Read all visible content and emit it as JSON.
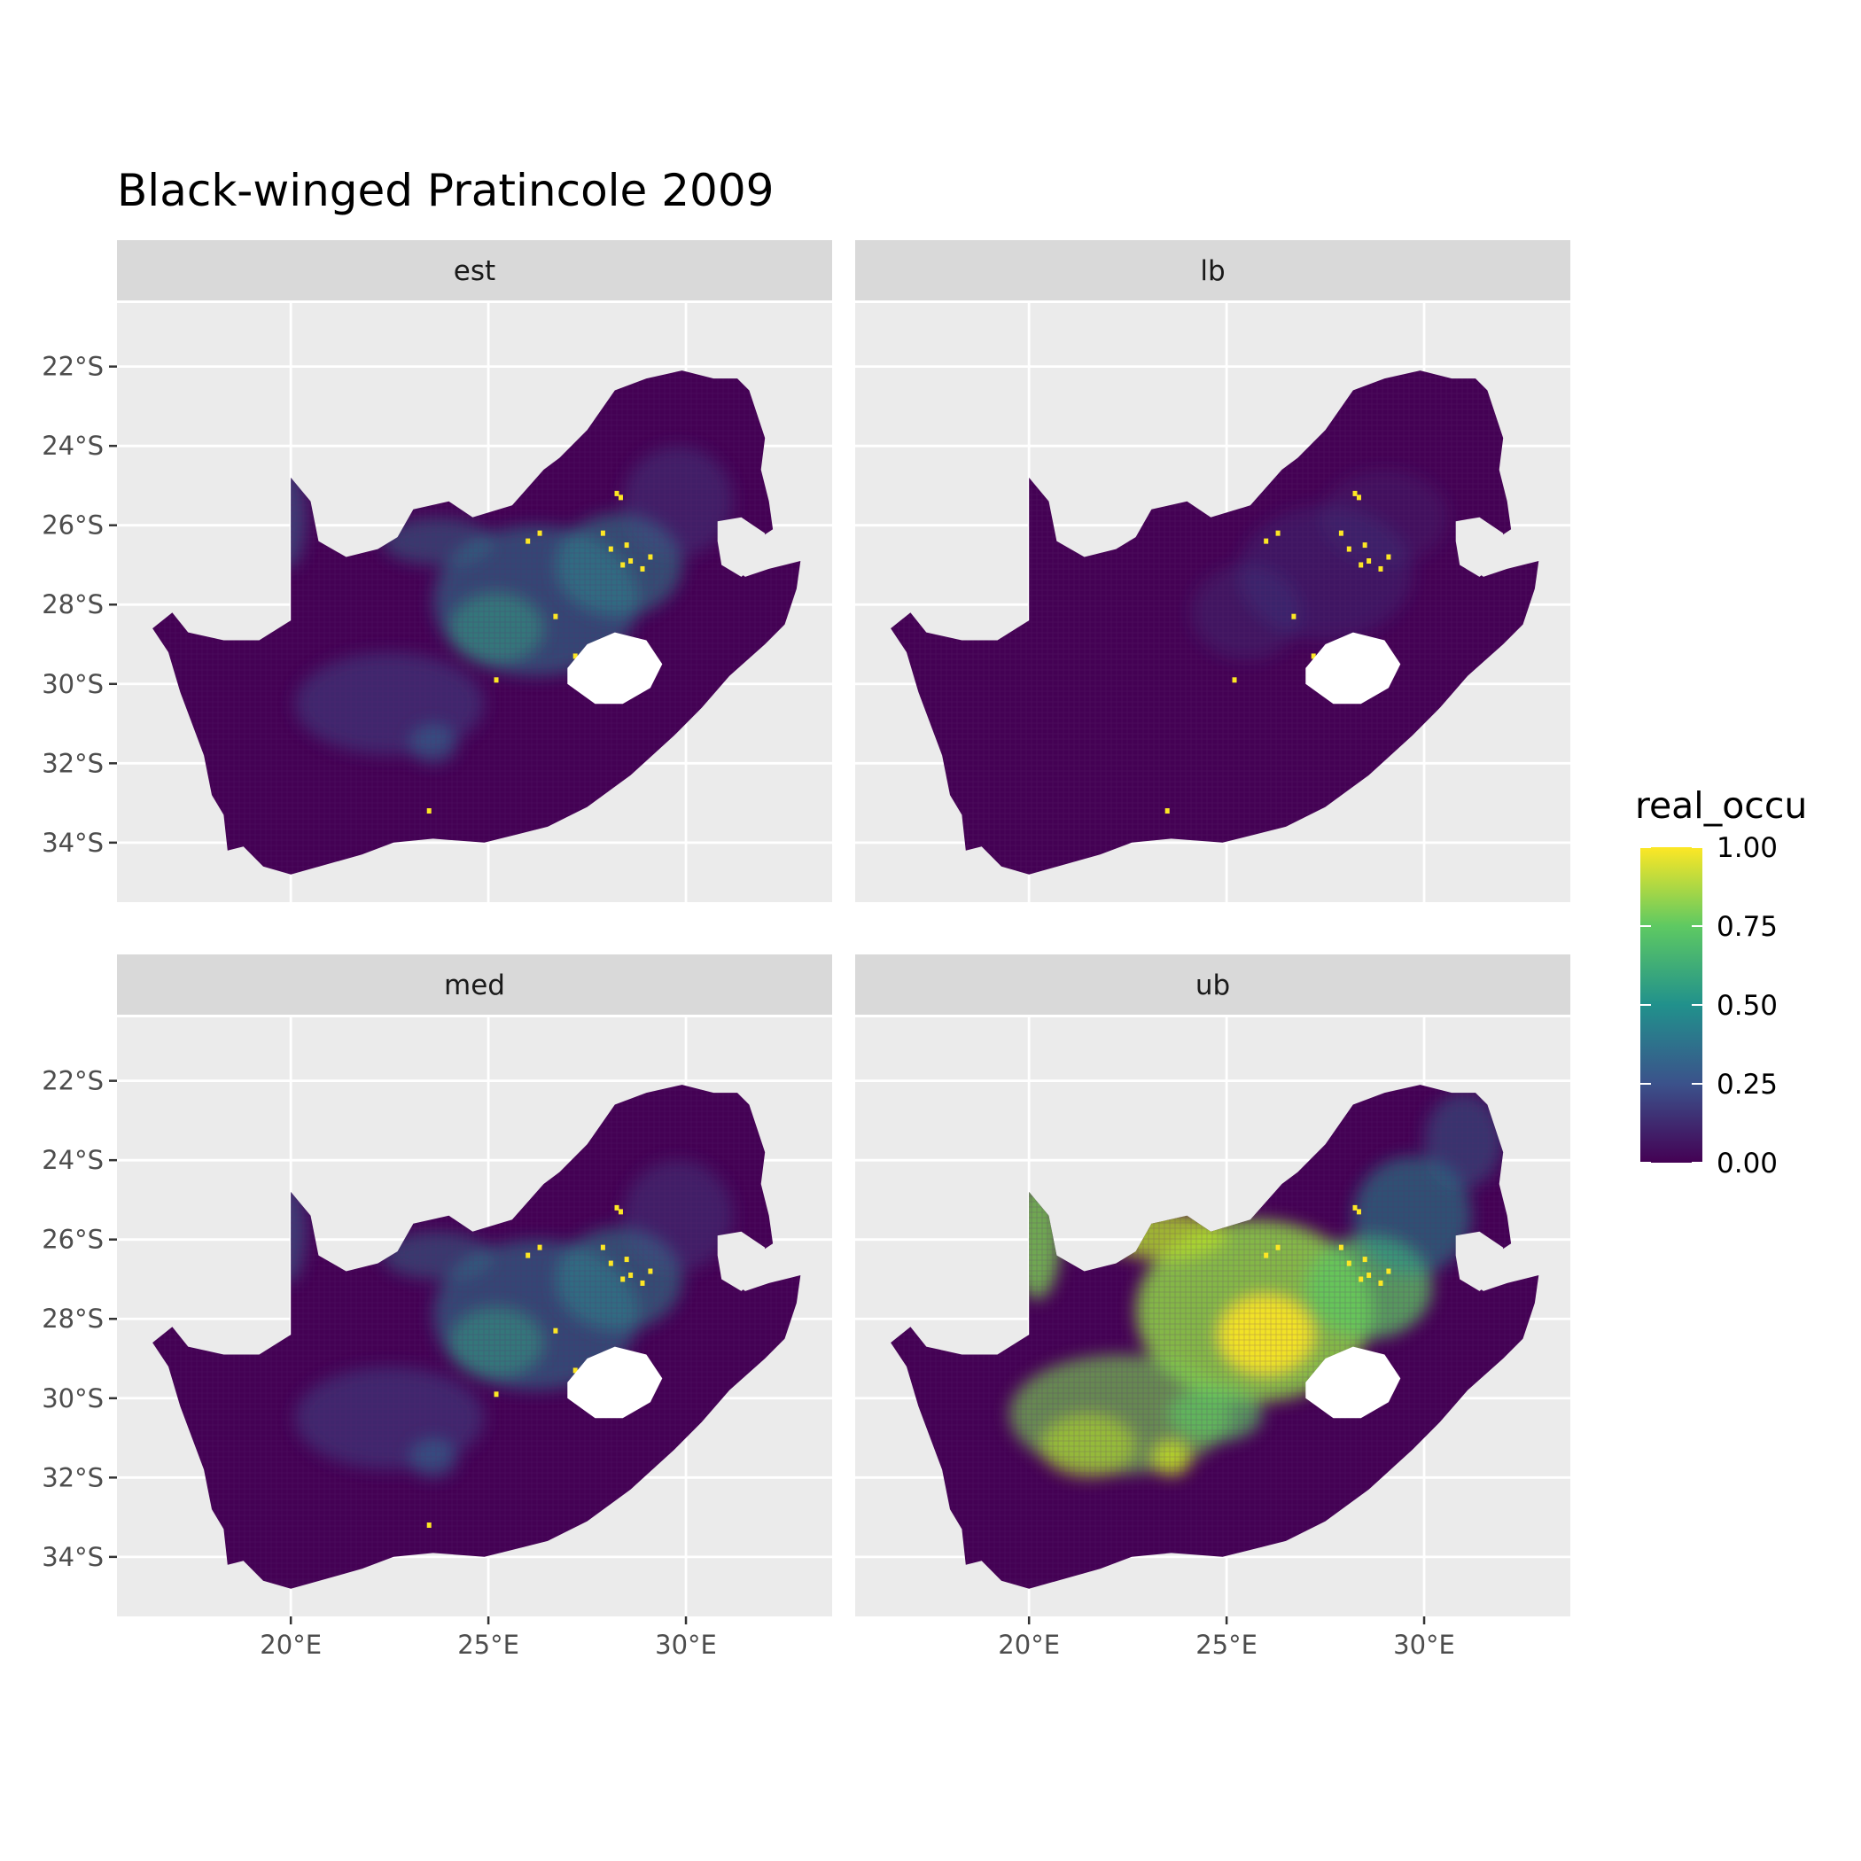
{
  "figure": {
    "title": "Black-winged Pratincole 2009"
  },
  "panels": [
    {
      "id": "est",
      "label": "est",
      "intensity": "moderate"
    },
    {
      "id": "lb",
      "label": "lb",
      "intensity": "low"
    },
    {
      "id": "med",
      "label": "med",
      "intensity": "moderate"
    },
    {
      "id": "ub",
      "label": "ub",
      "intensity": "high"
    }
  ],
  "axes": {
    "x_ticks": [
      {
        "value": 20,
        "label": "20°E"
      },
      {
        "value": 25,
        "label": "25°E"
      },
      {
        "value": 30,
        "label": "30°E"
      }
    ],
    "y_ticks": [
      {
        "value": -22,
        "label": "22°S"
      },
      {
        "value": -24,
        "label": "24°S"
      },
      {
        "value": -26,
        "label": "26°S"
      },
      {
        "value": -28,
        "label": "28°S"
      },
      {
        "value": -30,
        "label": "30°S"
      },
      {
        "value": -32,
        "label": "32°S"
      },
      {
        "value": -34,
        "label": "34°S"
      }
    ],
    "xlim": [
      15.6,
      33.7
    ],
    "ylim": [
      -35.5,
      -20.4
    ]
  },
  "legend": {
    "title": "real_occu",
    "position": "right",
    "ticks": [
      "1.00",
      "0.75",
      "0.50",
      "0.25",
      "0.00"
    ],
    "tick_values": [
      1.0,
      0.75,
      0.5,
      0.25,
      0.0
    ],
    "palette": [
      "#440154",
      "#3b528b",
      "#21918c",
      "#5ec962",
      "#fde725"
    ]
  },
  "colors": {
    "panel_bg": "#ebebeb",
    "strip_bg": "#d9d9d9",
    "grid": "#ffffff",
    "text": "#4d4d4d",
    "title": "#000000",
    "lesotho_hole": "#ffffff"
  }
}
